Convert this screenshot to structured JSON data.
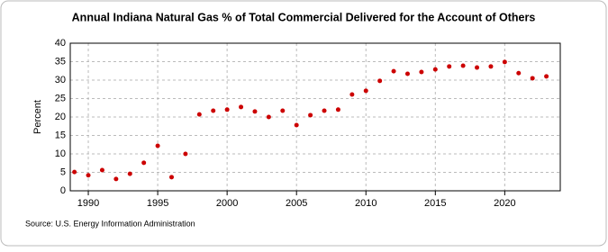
{
  "chart_data": {
    "type": "scatter",
    "title": "Annual Indiana Natural Gas % of Total Commercial Delivered for the Account of Others",
    "y_label": "Percent",
    "source": "Source: U.S. Energy Information Administration",
    "color": "#cc0000",
    "x": [
      1989,
      1990,
      1991,
      1992,
      1993,
      1994,
      1995,
      1996,
      1997,
      1998,
      1999,
      2000,
      2001,
      2002,
      2003,
      2004,
      2005,
      2006,
      2007,
      2008,
      2009,
      2010,
      2011,
      2012,
      2013,
      2014,
      2015,
      2016,
      2017,
      2018,
      2019,
      2020,
      2021,
      2022,
      2023
    ],
    "values": [
      5.1,
      4.2,
      5.6,
      3.2,
      4.6,
      7.6,
      12.2,
      3.7,
      10.0,
      20.7,
      21.7,
      22.0,
      22.7,
      21.5,
      20.0,
      21.7,
      17.8,
      20.5,
      21.7,
      22.0,
      26.1,
      27.1,
      29.8,
      32.4,
      31.7,
      32.2,
      32.9,
      33.7,
      33.9,
      33.4,
      33.7,
      34.9,
      31.9,
      30.5,
      31.0
    ],
    "xlim": [
      1988.7,
      2024
    ],
    "xticks": [
      1990,
      1995,
      2000,
      2005,
      2010,
      2015,
      2020
    ],
    "ylim": [
      0,
      40
    ],
    "yticks": [
      0,
      5,
      10,
      15,
      20,
      25,
      30,
      35,
      40
    ],
    "grid": true
  }
}
